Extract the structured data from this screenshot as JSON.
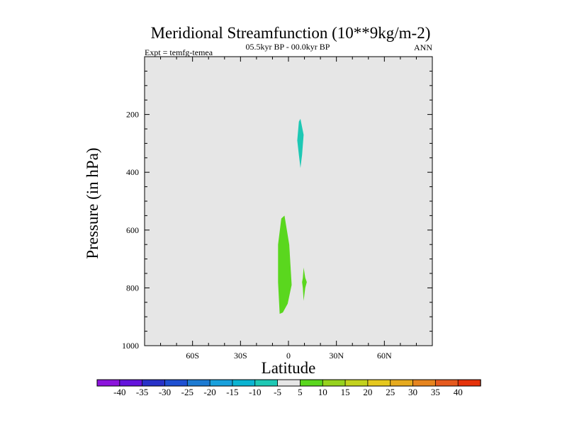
{
  "chart_data": {
    "type": "heatmap",
    "title": "Meridional Streamfunction (10**9kg/m-2)",
    "subtitle": "05.5kyr BP - 00.0kyr BP",
    "left_label": "Expt = temfg-temea",
    "right_label": "ANN",
    "xlabel": "Latitude",
    "ylabel": "Pressure (in hPa)",
    "xlim": [
      -90,
      90
    ],
    "ylim": [
      1000,
      0
    ],
    "x_ticks": [
      {
        "value": -60,
        "label": "60S"
      },
      {
        "value": -30,
        "label": "30S"
      },
      {
        "value": 0,
        "label": "0"
      },
      {
        "value": 30,
        "label": "30N"
      },
      {
        "value": 60,
        "label": "60N"
      }
    ],
    "y_ticks": [
      {
        "value": 200,
        "label": "200"
      },
      {
        "value": 400,
        "label": "400"
      },
      {
        "value": 600,
        "label": "600"
      },
      {
        "value": 800,
        "label": "800"
      },
      {
        "value": 1000,
        "label": "1000"
      }
    ],
    "background_color": "#e6e6e6",
    "regions": [
      {
        "name": "upper-tropical-cell",
        "level": -5,
        "color": "#1ec8b4",
        "outline": [
          [
            6.5,
            225
          ],
          [
            7.5,
            215
          ],
          [
            9.5,
            270
          ],
          [
            8.5,
            340
          ],
          [
            7.5,
            385
          ],
          [
            6.5,
            340
          ],
          [
            5.5,
            290
          ]
        ]
      },
      {
        "name": "lower-tropical-cell",
        "level": 5,
        "color": "#5ad71e",
        "outline": [
          [
            -4.5,
            560
          ],
          [
            -2.5,
            550
          ],
          [
            0.5,
            650
          ],
          [
            2,
            790
          ],
          [
            -0.5,
            855
          ],
          [
            -3.5,
            885
          ],
          [
            -5.5,
            890
          ],
          [
            -6.5,
            780
          ],
          [
            -6.5,
            650
          ]
        ]
      },
      {
        "name": "small-northern-cell",
        "level": 5,
        "color": "#5ad71e",
        "outline": [
          [
            9.5,
            730
          ],
          [
            10.5,
            765
          ],
          [
            11.5,
            780
          ],
          [
            10.5,
            800
          ],
          [
            9.5,
            845
          ],
          [
            9,
            800
          ],
          [
            8.5,
            780
          ],
          [
            9,
            765
          ]
        ]
      }
    ],
    "colorbar": {
      "labels": [
        "-40",
        "-35",
        "-30",
        "-25",
        "-20",
        "-15",
        "-10",
        "-5",
        "5",
        "10",
        "15",
        "20",
        "25",
        "30",
        "35",
        "40"
      ],
      "colors": [
        "#8c14dc",
        "#6414dc",
        "#2832c8",
        "#1e50d2",
        "#1c7ad2",
        "#18a0dc",
        "#0ab4d2",
        "#1ec8b4",
        "#e6e6e6",
        "#5ad71e",
        "#96d21e",
        "#c3d21e",
        "#e6c81e",
        "#e6aa1e",
        "#e6841e",
        "#e65a1e",
        "#e6320a"
      ]
    }
  }
}
